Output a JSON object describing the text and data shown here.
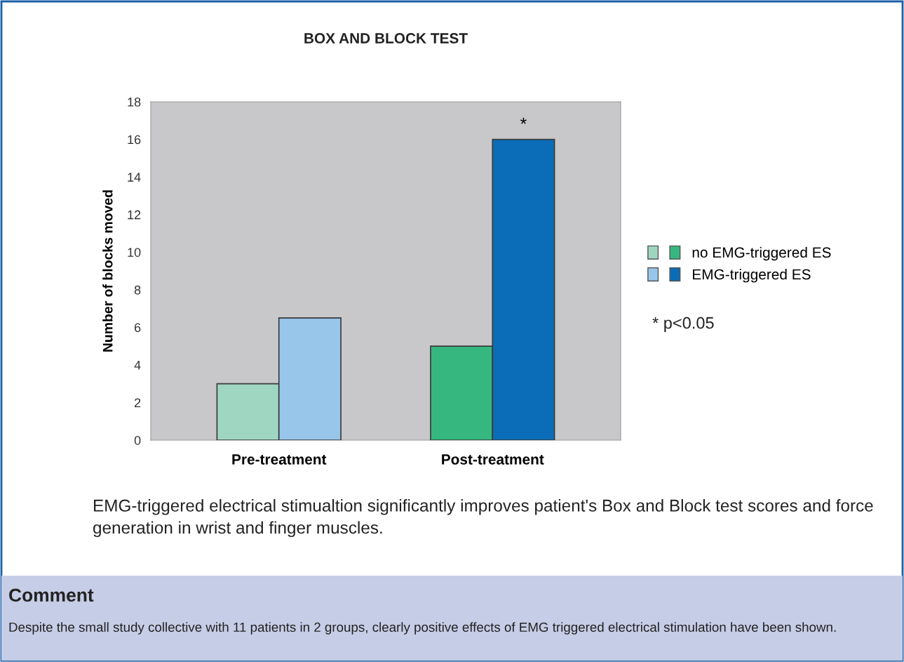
{
  "chart_data": {
    "type": "bar",
    "title": "BOX AND BLOCK TEST",
    "ylabel": "Number of blocks moved",
    "categories": [
      "Pre-treatment",
      "Post-treatment"
    ],
    "series": [
      {
        "name": "no EMG-triggered ES",
        "colors": [
          "#9fd6c2",
          "#36b77f"
        ],
        "values": [
          3,
          5
        ]
      },
      {
        "name": "EMG-triggered ES",
        "colors": [
          "#98c6ea",
          "#0b6db7"
        ],
        "values": [
          6.5,
          16
        ]
      }
    ],
    "ylim": [
      0,
      18
    ],
    "yticks": [
      0,
      2,
      4,
      6,
      8,
      10,
      12,
      14,
      16,
      18
    ],
    "grid": false,
    "legend": "right",
    "annotations": [
      {
        "text": "*",
        "x": "Post-treatment",
        "y": 16
      },
      "* p<0.05",
      "EMG-triggered electrical stimualtion significantly improves patient's Box and Block test scores and force generation in wrist and finger muscles.",
      "Comment",
      "Despite the small study collective with 11 patients in 2 groups, clearly positive effects of EMG triggered electrical stimulation have been shown."
    ]
  }
}
